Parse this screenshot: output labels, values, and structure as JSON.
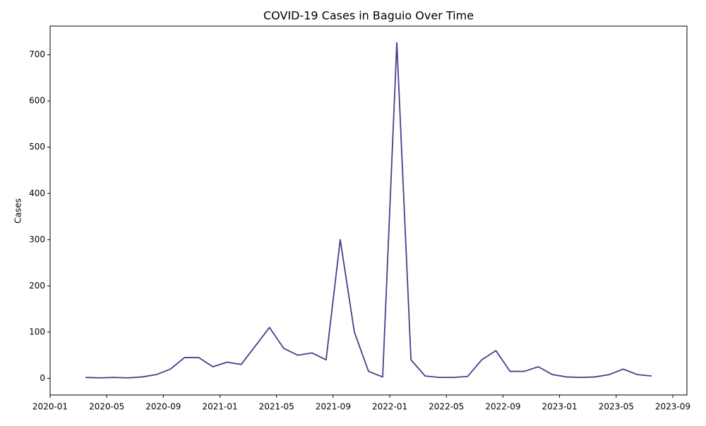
{
  "chart_data": {
    "type": "line",
    "title": "COVID-19 Cases in Baguio Over Time",
    "y_label": "Cases",
    "x": [
      "2020-03",
      "2020-04",
      "2020-05",
      "2020-06",
      "2020-07",
      "2020-08",
      "2020-09",
      "2020-10",
      "2020-11",
      "2020-12",
      "2021-01",
      "2021-02",
      "2021-03",
      "2021-04",
      "2021-05",
      "2021-06",
      "2021-07",
      "2021-08",
      "2021-09",
      "2021-10",
      "2021-11",
      "2021-12",
      "2022-01",
      "2022-02",
      "2022-03",
      "2022-04",
      "2022-05",
      "2022-06",
      "2022-07",
      "2022-08",
      "2022-09",
      "2022-10",
      "2022-11",
      "2022-12",
      "2023-01",
      "2023-02",
      "2023-03",
      "2023-04",
      "2023-05",
      "2023-06",
      "2023-07"
    ],
    "series": [
      {
        "name": "Cases",
        "color": "#483d8b",
        "values": [
          2,
          1,
          2,
          1,
          3,
          8,
          20,
          45,
          45,
          25,
          35,
          30,
          70,
          110,
          65,
          50,
          55,
          40,
          300,
          100,
          15,
          3,
          726,
          40,
          5,
          2,
          2,
          4,
          40,
          60,
          15,
          15,
          25,
          8,
          3,
          2,
          3,
          8,
          20,
          8,
          5
        ]
      }
    ],
    "xlim": [
      "2020-01",
      "2023-10"
    ],
    "xticks": [
      "2020-01",
      "2020-05",
      "2020-09",
      "2021-01",
      "2021-05",
      "2021-09",
      "2022-01",
      "2022-05",
      "2022-09",
      "2023-01",
      "2023-05",
      "2023-09"
    ],
    "ylim": [
      -36,
      762
    ],
    "yticks": [
      0,
      100,
      200,
      300,
      400,
      500,
      600,
      700
    ]
  }
}
